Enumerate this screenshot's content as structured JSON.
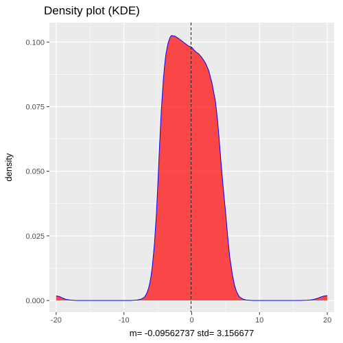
{
  "chart_data": {
    "type": "area",
    "title": "Density plot (KDE)",
    "xlabel": "m=  -0.09562737  std=  3.156677",
    "ylabel": "density",
    "xlim": [
      -21,
      21
    ],
    "ylim": [
      -0.0045,
      0.1075
    ],
    "x_ticks": [
      -20,
      -10,
      0,
      10,
      20
    ],
    "y_ticks": [
      0.0,
      0.025,
      0.05,
      0.075,
      0.1
    ],
    "y_tick_labels": [
      "0.000",
      "0.025",
      "0.050",
      "0.075",
      "0.100"
    ],
    "grid": true,
    "mean_line": {
      "x": -0.09562737,
      "style": "dashed"
    },
    "colors": {
      "fill": "#ff0000",
      "fill_alpha": 0.7,
      "line": "#0000ff",
      "panel": "#ebebeb",
      "grid": "#ffffff",
      "mean_line": "#000000"
    },
    "series": [
      {
        "x": [
          -20,
          -19.5,
          -19,
          -18.5,
          -18,
          -17,
          -16,
          -14,
          -12,
          -10,
          -9,
          -8.5,
          -8,
          -7.5,
          -7,
          -6.8,
          -6.6,
          -6.4,
          -6.2,
          -6,
          -5.8,
          -5.5,
          -5.2,
          -5,
          -4.8,
          -4.5,
          -4.2,
          -4,
          -3.8,
          -3.5,
          -3.2,
          -3,
          -2.5,
          -2,
          -1.5,
          -1,
          -0.5,
          0,
          0.3,
          0.7,
          1,
          1.5,
          2,
          2.5,
          3,
          3.5,
          3.8,
          4,
          4.3,
          4.6,
          5,
          5.3,
          5.6,
          6,
          6.3,
          6.6,
          7,
          7.5,
          8,
          9,
          10,
          12,
          14,
          16,
          17,
          17.5,
          18,
          18.5,
          19,
          19.5,
          20
        ],
        "y": [
          0.0018,
          0.0015,
          0.0009,
          0.0004,
          0.0002,
          0.0,
          0.0,
          0.0,
          0.0,
          0.0,
          0.0,
          0.0001,
          0.0002,
          0.0005,
          0.0012,
          0.002,
          0.003,
          0.0045,
          0.0065,
          0.0095,
          0.0135,
          0.022,
          0.034,
          0.045,
          0.057,
          0.073,
          0.085,
          0.091,
          0.0955,
          0.0995,
          0.1018,
          0.1025,
          0.1023,
          0.1015,
          0.1005,
          0.0995,
          0.0985,
          0.098,
          0.097,
          0.096,
          0.0955,
          0.094,
          0.092,
          0.089,
          0.084,
          0.077,
          0.07,
          0.064,
          0.054,
          0.045,
          0.034,
          0.025,
          0.017,
          0.01,
          0.006,
          0.0035,
          0.0015,
          0.0006,
          0.0002,
          0.0,
          0.0,
          0.0,
          0.0,
          0.0,
          0.0001,
          0.0002,
          0.0004,
          0.0008,
          0.0013,
          0.0017,
          0.0019
        ]
      }
    ]
  }
}
